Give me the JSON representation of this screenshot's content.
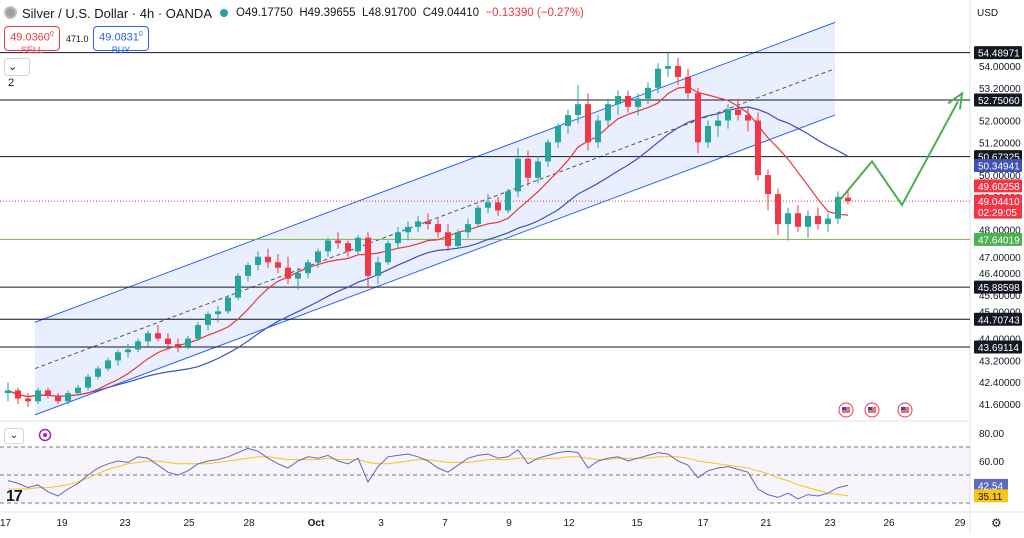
{
  "header": {
    "symbol": "Silver / U.S. Dollar · 4h · OANDA",
    "open": "O49.17750",
    "high": "H49.39655",
    "low": "L48.91700",
    "close": "C49.04410",
    "change": "−0.13390 (−0.27%)"
  },
  "trade": {
    "sell_price": "49.0360",
    "sell_sup": "0",
    "sell_label": "SELL",
    "spread": "471.0",
    "buy_price": "49.0831",
    "buy_sup": "0",
    "buy_label": "BUY"
  },
  "indicator_count": "2",
  "currency": "USD",
  "tv_logo": "17",
  "colors": {
    "up": "#26a69a",
    "down": "#f23645",
    "channel_line": "#2962ff",
    "channel_fill": "#2962ff",
    "ma_fast": "#e53935",
    "ma_slow": "#3f51b5",
    "support": "#7cb342",
    "projection": "#4caf50",
    "rsi": "#5c6bc0",
    "rsi_ma": "#f5c518",
    "level": "#131722"
  },
  "chart_data": {
    "type": "candlestick",
    "timeframe": "4h",
    "ylim": [
      41.0,
      55.5
    ],
    "y_ticks": [
      "54.00000",
      "53.20000",
      "52.00000",
      "51.20000",
      "50.00000",
      "49.20000",
      "48.00000",
      "47.00000",
      "46.40000",
      "45.60000",
      "45.00000",
      "44.00000",
      "43.20000",
      "42.40000",
      "41.60000"
    ],
    "x_ticks": [
      "17",
      "19",
      "23",
      "25",
      "28",
      "Oct",
      "3",
      "7",
      "9",
      "12",
      "15",
      "17",
      "21",
      "23",
      "26",
      "29"
    ],
    "horizontal_levels": [
      {
        "label": "54.48971",
        "value": 54.48971
      },
      {
        "label": "52.75060",
        "value": 52.7506
      },
      {
        "label": "50.67325",
        "value": 50.67325
      },
      {
        "label": "45.88598",
        "value": 45.88598
      },
      {
        "label": "44.70743",
        "value": 44.70743
      },
      {
        "label": "43.69114",
        "value": 43.69114
      }
    ],
    "support_level": {
      "label": "47.64019",
      "value": 47.64019
    },
    "price_labels": [
      {
        "label": "50.34941",
        "value": 50.34941,
        "series": "ma_slow"
      },
      {
        "label": "49.60258",
        "value": 49.60258,
        "series": "ma_fast"
      },
      {
        "label": "49.04410",
        "value": 49.0441,
        "series": "last",
        "countdown": "02:29:05"
      }
    ],
    "last_price": 49.0441,
    "candles": [
      [
        42.0,
        42.4,
        41.7,
        42.1
      ],
      [
        42.1,
        42.2,
        41.6,
        41.8
      ],
      [
        41.8,
        42.0,
        41.5,
        41.7
      ],
      [
        41.7,
        42.2,
        41.6,
        42.1
      ],
      [
        42.1,
        42.2,
        41.8,
        41.9
      ],
      [
        41.9,
        42.0,
        41.6,
        41.7
      ],
      [
        41.7,
        42.1,
        41.6,
        42.0
      ],
      [
        42.0,
        42.3,
        41.9,
        42.2
      ],
      [
        42.2,
        42.7,
        42.1,
        42.6
      ],
      [
        42.6,
        43.0,
        42.5,
        42.9
      ],
      [
        42.9,
        43.3,
        42.8,
        43.2
      ],
      [
        43.2,
        43.6,
        43.0,
        43.5
      ],
      [
        43.5,
        43.8,
        43.3,
        43.6
      ],
      [
        43.6,
        44.0,
        43.5,
        43.9
      ],
      [
        43.9,
        44.3,
        43.7,
        44.2
      ],
      [
        44.2,
        44.5,
        43.9,
        44.0
      ],
      [
        44.0,
        44.2,
        43.6,
        43.8
      ],
      [
        43.8,
        44.0,
        43.5,
        43.7
      ],
      [
        43.7,
        44.1,
        43.6,
        44.0
      ],
      [
        44.0,
        44.6,
        43.9,
        44.5
      ],
      [
        44.5,
        45.0,
        44.3,
        44.9
      ],
      [
        44.9,
        45.2,
        44.6,
        45.0
      ],
      [
        45.0,
        45.6,
        44.9,
        45.5
      ],
      [
        45.5,
        46.4,
        45.4,
        46.3
      ],
      [
        46.3,
        46.8,
        46.1,
        46.7
      ],
      [
        46.7,
        47.2,
        46.5,
        47.0
      ],
      [
        47.0,
        47.3,
        46.6,
        46.8
      ],
      [
        46.8,
        47.1,
        46.4,
        46.6
      ],
      [
        46.6,
        47.0,
        46.0,
        46.2
      ],
      [
        46.2,
        46.6,
        45.8,
        46.4
      ],
      [
        46.4,
        46.9,
        46.2,
        46.8
      ],
      [
        46.8,
        47.3,
        46.6,
        47.2
      ],
      [
        47.2,
        47.7,
        47.0,
        47.6
      ],
      [
        47.6,
        47.9,
        47.3,
        47.5
      ],
      [
        47.5,
        47.6,
        47.0,
        47.2
      ],
      [
        47.2,
        47.8,
        47.1,
        47.7
      ],
      [
        47.7,
        47.9,
        45.9,
        46.3
      ],
      [
        46.3,
        47.0,
        46.0,
        46.8
      ],
      [
        46.8,
        47.6,
        46.7,
        47.5
      ],
      [
        47.5,
        48.1,
        47.3,
        47.9
      ],
      [
        47.9,
        48.3,
        47.6,
        48.1
      ],
      [
        48.1,
        48.5,
        47.9,
        48.3
      ],
      [
        48.3,
        48.6,
        48.0,
        48.2
      ],
      [
        48.2,
        48.4,
        47.7,
        47.9
      ],
      [
        47.9,
        48.2,
        47.2,
        47.4
      ],
      [
        47.4,
        48.0,
        47.3,
        47.9
      ],
      [
        47.9,
        48.4,
        47.7,
        48.2
      ],
      [
        48.2,
        48.9,
        48.1,
        48.8
      ],
      [
        48.8,
        49.3,
        48.6,
        49.0
      ],
      [
        49.0,
        49.2,
        48.5,
        48.7
      ],
      [
        48.7,
        49.5,
        48.6,
        49.4
      ],
      [
        49.4,
        51.0,
        49.2,
        50.6
      ],
      [
        50.6,
        50.9,
        49.6,
        49.9
      ],
      [
        49.9,
        50.7,
        49.7,
        50.5
      ],
      [
        50.5,
        51.3,
        50.3,
        51.2
      ],
      [
        51.2,
        51.9,
        51.0,
        51.8
      ],
      [
        51.8,
        52.4,
        51.5,
        52.2
      ],
      [
        52.2,
        53.3,
        51.9,
        52.6
      ],
      [
        52.6,
        53.0,
        50.9,
        51.2
      ],
      [
        51.2,
        52.2,
        51.0,
        52.0
      ],
      [
        52.0,
        52.8,
        51.8,
        52.6
      ],
      [
        52.6,
        53.1,
        52.2,
        52.9
      ],
      [
        52.9,
        53.1,
        52.3,
        52.5
      ],
      [
        52.5,
        53.0,
        52.2,
        52.8
      ],
      [
        52.8,
        53.4,
        52.6,
        53.2
      ],
      [
        53.2,
        54.1,
        53.0,
        53.9
      ],
      [
        53.9,
        54.5,
        53.6,
        54.0
      ],
      [
        54.0,
        54.3,
        53.3,
        53.6
      ],
      [
        53.6,
        53.9,
        52.8,
        53.0
      ],
      [
        53.0,
        53.2,
        50.8,
        51.2
      ],
      [
        51.2,
        52.0,
        51.0,
        51.8
      ],
      [
        51.8,
        52.3,
        51.4,
        52.0
      ],
      [
        52.0,
        52.6,
        51.7,
        52.4
      ],
      [
        52.4,
        52.8,
        52.0,
        52.2
      ],
      [
        52.2,
        52.5,
        51.6,
        52.0
      ],
      [
        52.0,
        52.3,
        49.8,
        50.0
      ],
      [
        50.0,
        50.2,
        48.7,
        49.3
      ],
      [
        49.3,
        49.5,
        47.8,
        48.2
      ],
      [
        48.2,
        48.8,
        47.6,
        48.6
      ],
      [
        48.6,
        48.9,
        47.9,
        48.1
      ],
      [
        48.1,
        48.7,
        47.7,
        48.5
      ],
      [
        48.5,
        48.8,
        48.0,
        48.2
      ],
      [
        48.2,
        48.6,
        47.9,
        48.4
      ],
      [
        48.4,
        49.4,
        48.2,
        49.2
      ],
      [
        49.17,
        49.4,
        48.92,
        49.04
      ]
    ],
    "channel": {
      "upper_start": 44.6,
      "upper_end": 55.6,
      "lower_start": 41.2,
      "lower_end": 52.2
    },
    "projection": [
      49.0,
      50.5,
      48.9,
      52.7
    ],
    "rsi": {
      "y_ticks": [
        "80.00",
        "60.00",
        "40.00"
      ],
      "levels": [
        70,
        50,
        30
      ],
      "ylim": [
        25,
        85
      ],
      "value_label": "42.54",
      "ma_label": "35.11",
      "values": [
        46,
        44,
        41,
        43,
        38,
        35,
        40,
        44,
        50,
        55,
        58,
        60,
        59,
        63,
        62,
        57,
        52,
        50,
        53,
        58,
        60,
        61,
        63,
        66,
        69,
        67,
        62,
        58,
        55,
        60,
        63,
        62,
        64,
        60,
        58,
        62,
        45,
        56,
        63,
        64,
        65,
        63,
        60,
        55,
        52,
        57,
        62,
        64,
        65,
        62,
        63,
        68,
        58,
        62,
        64,
        66,
        67,
        66,
        55,
        60,
        62,
        63,
        60,
        62,
        64,
        66,
        65,
        60,
        57,
        48,
        53,
        55,
        56,
        54,
        52,
        40,
        36,
        34,
        37,
        33,
        36,
        35,
        37,
        41,
        42.54
      ],
      "ma": [
        40,
        40,
        40,
        41,
        41,
        42,
        43,
        45,
        48,
        51,
        54,
        56,
        58,
        59,
        60,
        60,
        59,
        58,
        58,
        58,
        58,
        59,
        60,
        61,
        62,
        63,
        63,
        62,
        61,
        61,
        61,
        61,
        62,
        61,
        61,
        61,
        59,
        58,
        58,
        59,
        60,
        61,
        61,
        60,
        59,
        59,
        59,
        60,
        61,
        61,
        61,
        62,
        62,
        61,
        62,
        62,
        63,
        63,
        62,
        61,
        61,
        62,
        62,
        62,
        62,
        63,
        63,
        63,
        62,
        60,
        59,
        58,
        57,
        56,
        55,
        53,
        51,
        48,
        46,
        43,
        41,
        39,
        37,
        36,
        35.11
      ]
    }
  }
}
